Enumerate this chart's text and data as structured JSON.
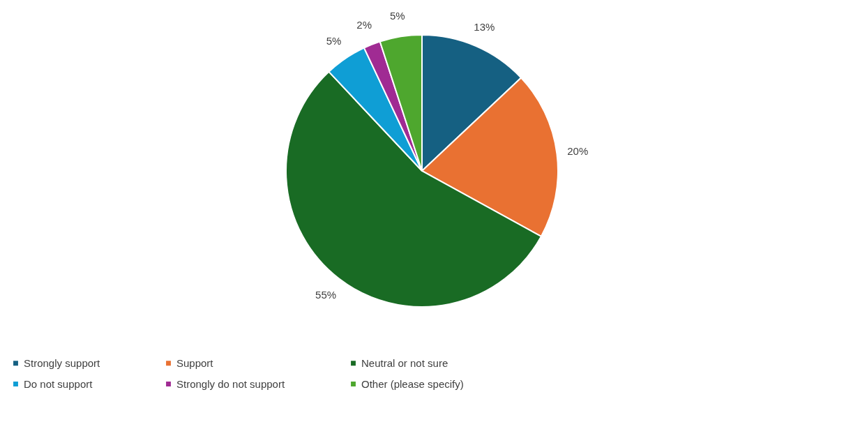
{
  "chart_data": {
    "type": "pie",
    "categories": [
      "Strongly support",
      "Support",
      "Neutral or not sure",
      "Do not support",
      "Strongly do not support",
      "Other (please specify)"
    ],
    "values": [
      13,
      20,
      55,
      5,
      2,
      5
    ],
    "colors": [
      "#156082",
      "#e97132",
      "#196b24",
      "#0f9ed5",
      "#a02b93",
      "#4ea72e"
    ],
    "value_labels": [
      "13%",
      "20%",
      "55%",
      "5%",
      "2%",
      "5%"
    ],
    "legend": "bottom"
  }
}
